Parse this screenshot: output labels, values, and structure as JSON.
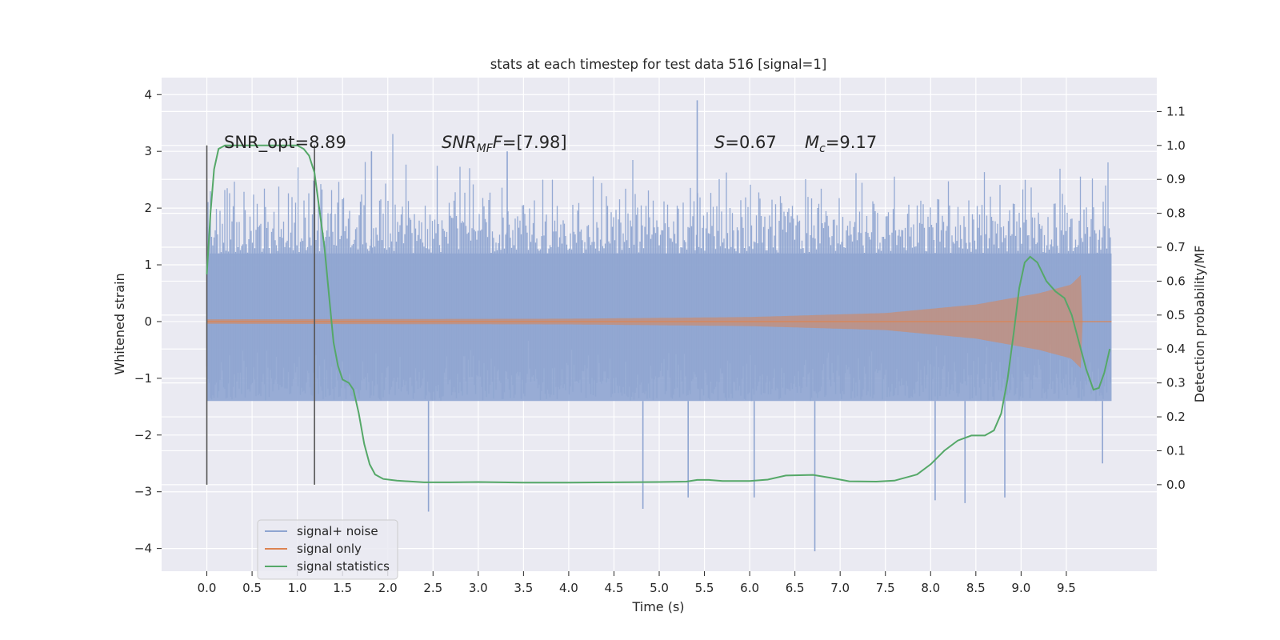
{
  "chart_data": {
    "type": "line",
    "title": "stats at each timestep for test data 516 [signal=1]",
    "xlabel": "Time (s)",
    "ylabel": "Whitened strain",
    "y2label": "Detection probability/MF",
    "xlim": [
      -0.5,
      10.5
    ],
    "ylim": [
      -4.4,
      4.3
    ],
    "y2lim": [
      -0.255,
      1.2
    ],
    "x_ticks": [
      "0.0",
      "0.5",
      "1.0",
      "1.5",
      "2.0",
      "2.5",
      "3.0",
      "3.5",
      "4.0",
      "4.5",
      "5.0",
      "5.5",
      "6.0",
      "6.5",
      "7.0",
      "7.5",
      "8.0",
      "8.5",
      "9.0",
      "9.5"
    ],
    "y_ticks": [
      "−4",
      "−3",
      "−2",
      "−1",
      "0",
      "1",
      "2",
      "3",
      "4"
    ],
    "y2_ticks": [
      "0.0",
      "0.1",
      "0.2",
      "0.3",
      "0.4",
      "0.5",
      "0.6",
      "0.7",
      "0.8",
      "0.9",
      "1.0",
      "1.1"
    ],
    "grid": true,
    "legend_position": "lower-left",
    "colors": {
      "background": "#eaeaf2",
      "signal_noise": "#8fa5d1",
      "signal_only": "#dd8452",
      "signal_statistics": "#55a868",
      "window_line": "#555555"
    },
    "annotations": {
      "snr_opt": "SNR_opt=8.89",
      "snr_mf_label": "SNR",
      "snr_mf_sub": "MF",
      "snr_mf_value": "=[7.98]",
      "s_label": "S",
      "s_value": "=0.67",
      "mc_label": "M",
      "mc_sub": "c",
      "mc_value": "=9.17"
    },
    "window_lines_x": [
      0.0,
      1.19
    ],
    "series": [
      {
        "name": "signal+ noise",
        "x_range": [
          0.0,
          10.0
        ],
        "envelope": {
          "typical_high": 2.0,
          "typical_low": -1.9,
          "core_high": 1.2,
          "core_low": -1.4
        },
        "spikes": [
          {
            "x": 5.42,
            "y": 3.9
          },
          {
            "x": 3.32,
            "y": 3.0
          },
          {
            "x": 1.82,
            "y": 3.0
          },
          {
            "x": 6.72,
            "y": -4.05
          },
          {
            "x": 2.45,
            "y": -3.35
          },
          {
            "x": 4.82,
            "y": -3.3
          },
          {
            "x": 5.32,
            "y": -3.1
          },
          {
            "x": 6.05,
            "y": -3.1
          },
          {
            "x": 8.05,
            "y": -3.15
          },
          {
            "x": 8.38,
            "y": -3.2
          },
          {
            "x": 8.82,
            "y": -3.1
          },
          {
            "x": 9.9,
            "y": -2.5
          }
        ]
      },
      {
        "name": "signal only",
        "amplitude": [
          [
            0.0,
            0.04
          ],
          [
            4.0,
            0.05
          ],
          [
            6.0,
            0.08
          ],
          [
            7.5,
            0.15
          ],
          [
            8.5,
            0.3
          ],
          [
            9.2,
            0.5
          ],
          [
            9.55,
            0.65
          ],
          [
            9.66,
            0.82
          ],
          [
            9.68,
            0.0
          ],
          [
            10.0,
            0.0
          ]
        ]
      },
      {
        "name": "signal statistics",
        "points": [
          [
            0.0,
            0.62
          ],
          [
            0.04,
            0.8
          ],
          [
            0.08,
            0.93
          ],
          [
            0.13,
            0.99
          ],
          [
            0.2,
            1.0
          ],
          [
            0.3,
            1.0
          ],
          [
            0.5,
            1.0
          ],
          [
            0.7,
            1.0
          ],
          [
            0.9,
            1.0
          ],
          [
            1.0,
            1.0
          ],
          [
            1.07,
            0.99
          ],
          [
            1.13,
            0.97
          ],
          [
            1.19,
            0.92
          ],
          [
            1.25,
            0.8
          ],
          [
            1.3,
            0.7
          ],
          [
            1.35,
            0.56
          ],
          [
            1.4,
            0.42
          ],
          [
            1.45,
            0.35
          ],
          [
            1.5,
            0.31
          ],
          [
            1.57,
            0.3
          ],
          [
            1.62,
            0.28
          ],
          [
            1.68,
            0.21
          ],
          [
            1.74,
            0.12
          ],
          [
            1.8,
            0.06
          ],
          [
            1.86,
            0.03
          ],
          [
            1.95,
            0.017
          ],
          [
            2.1,
            0.012
          ],
          [
            2.4,
            0.007
          ],
          [
            2.7,
            0.007
          ],
          [
            3.0,
            0.008
          ],
          [
            3.5,
            0.006
          ],
          [
            4.0,
            0.006
          ],
          [
            4.5,
            0.007
          ],
          [
            5.0,
            0.008
          ],
          [
            5.3,
            0.009
          ],
          [
            5.42,
            0.014
          ],
          [
            5.55,
            0.014
          ],
          [
            5.7,
            0.011
          ],
          [
            6.0,
            0.011
          ],
          [
            6.2,
            0.015
          ],
          [
            6.4,
            0.027
          ],
          [
            6.7,
            0.029
          ],
          [
            6.9,
            0.02
          ],
          [
            7.1,
            0.01
          ],
          [
            7.4,
            0.009
          ],
          [
            7.6,
            0.012
          ],
          [
            7.85,
            0.03
          ],
          [
            8.0,
            0.06
          ],
          [
            8.15,
            0.1
          ],
          [
            8.3,
            0.13
          ],
          [
            8.45,
            0.145
          ],
          [
            8.6,
            0.145
          ],
          [
            8.7,
            0.16
          ],
          [
            8.78,
            0.21
          ],
          [
            8.85,
            0.31
          ],
          [
            8.92,
            0.45
          ],
          [
            8.98,
            0.58
          ],
          [
            9.04,
            0.655
          ],
          [
            9.1,
            0.672
          ],
          [
            9.18,
            0.655
          ],
          [
            9.28,
            0.6
          ],
          [
            9.38,
            0.57
          ],
          [
            9.48,
            0.55
          ],
          [
            9.56,
            0.5
          ],
          [
            9.64,
            0.42
          ],
          [
            9.72,
            0.34
          ],
          [
            9.8,
            0.28
          ],
          [
            9.86,
            0.285
          ],
          [
            9.92,
            0.33
          ],
          [
            9.98,
            0.4
          ]
        ]
      }
    ]
  }
}
